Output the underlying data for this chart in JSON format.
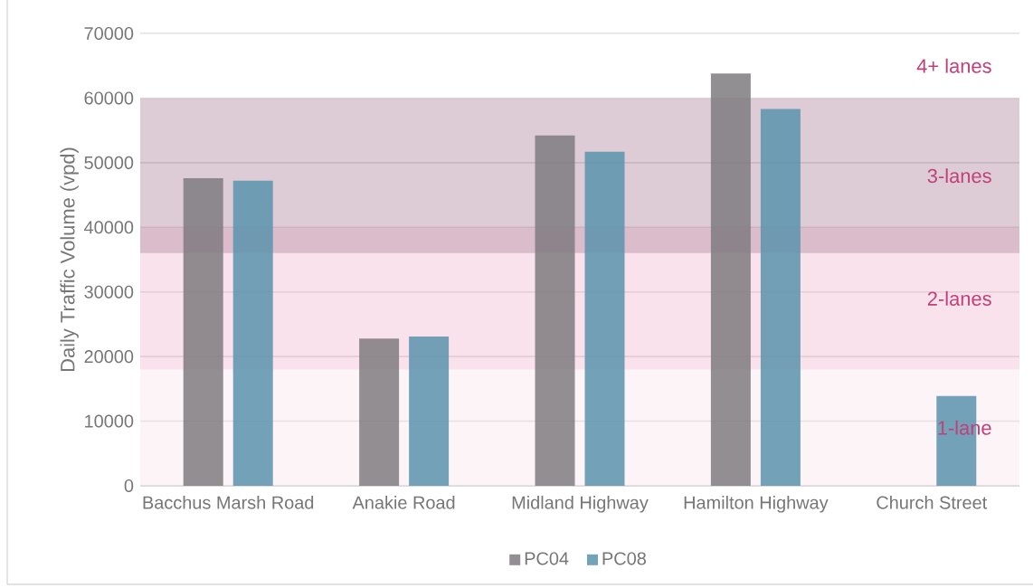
{
  "chart_data": {
    "type": "bar",
    "ylabel": "Daily Traffic Volume (vpd)",
    "categories": [
      "Bacchus Marsh Road",
      "Anakie Road",
      "Midland Highway",
      "Hamilton Highway",
      "Church Street"
    ],
    "series": [
      {
        "name": "PC04",
        "color": "#7f7b80",
        "values": [
          47600,
          22800,
          54200,
          63800,
          null
        ]
      },
      {
        "name": "PC08",
        "color": "#5b93ad",
        "values": [
          47200,
          23100,
          51700,
          58300,
          13900
        ]
      }
    ],
    "ylim": [
      0,
      70000
    ],
    "yticks": [
      0,
      10000,
      20000,
      30000,
      40000,
      50000,
      60000,
      70000
    ],
    "bands": [
      {
        "axis": "y",
        "from": 0,
        "to": 18000,
        "label": "1-lane",
        "color": "#fbe6ef"
      },
      {
        "axis": "y",
        "from": 18000,
        "to": 40000,
        "label": "2-lanes",
        "color": "#f2bfd4"
      },
      {
        "axis": "y",
        "from": 36000,
        "to": 60000,
        "label": "3-lanes",
        "color": "#b48ea4"
      },
      {
        "axis": "y",
        "from": 60000,
        "to": 70000,
        "label": "4+ lanes",
        "color": "#ffffff"
      }
    ],
    "grid": "y",
    "legend": "bottom"
  }
}
